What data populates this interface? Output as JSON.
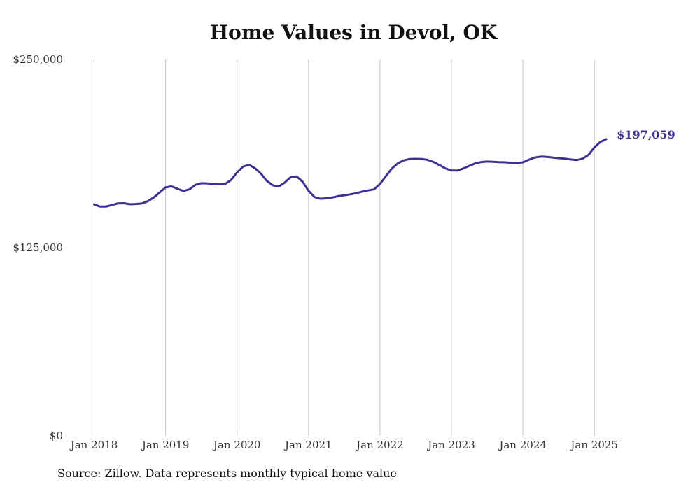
{
  "chart_data": {
    "type": "line",
    "title": "Home Values in Devol, OK",
    "xlabel": "",
    "ylabel": "",
    "ylim": [
      0,
      250000
    ],
    "y_ticks": [
      "$0",
      "$125,000",
      "$250,000"
    ],
    "y_tick_values": [
      0,
      125000,
      250000
    ],
    "x_ticks": [
      "Jan 2018",
      "Jan 2019",
      "Jan 2020",
      "Jan 2021",
      "Jan 2022",
      "Jan 2023",
      "Jan 2024",
      "Jan 2025"
    ],
    "grid": "vertical",
    "line_color": "#3b3291",
    "end_label": "$197,059",
    "series": [
      {
        "values": [
          153700,
          152300,
          152300,
          153300,
          154400,
          154500,
          153800,
          154000,
          154300,
          155800,
          158300,
          161600,
          165000,
          165700,
          164100,
          162700,
          163700,
          166700,
          167800,
          167700,
          167100,
          167200,
          167300,
          170000,
          174900,
          178800,
          180000,
          177800,
          174200,
          169400,
          166400,
          165600,
          168200,
          171800,
          172300,
          168800,
          162800,
          158600,
          157500,
          157800,
          158300,
          159200,
          159800,
          160400,
          161200,
          162200,
          163000,
          163700,
          167300,
          172500,
          177600,
          181000,
          183000,
          183900,
          184000,
          183900,
          183300,
          181900,
          179800,
          177600,
          176300,
          176200,
          177600,
          179300,
          181000,
          181900,
          182200,
          182000,
          181800,
          181700,
          181400,
          181000,
          181700,
          183400,
          184900,
          185500,
          185300,
          184900,
          184500,
          184100,
          183600,
          183200,
          184100,
          186600,
          191600,
          195200,
          197059
        ]
      }
    ]
  },
  "source": "Source: Zillow. Data represents monthly typical home value"
}
